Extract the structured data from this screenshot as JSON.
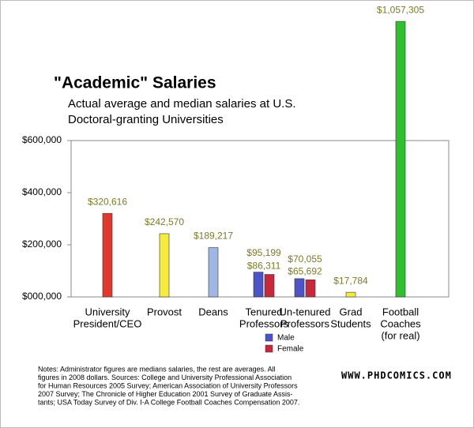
{
  "chart_data": {
    "type": "bar",
    "title": "\"Academic\" Salaries",
    "subtitle": [
      "Actual average and median salaries at U.S.",
      "Doctoral-granting Universities"
    ],
    "categories": [
      [
        "University",
        "President/CEO"
      ],
      [
        "Provost"
      ],
      [
        "Deans"
      ],
      [
        "Tenured",
        "Professors"
      ],
      [
        "Un-tenured",
        "Professors"
      ],
      [
        "Grad",
        "Students"
      ],
      [
        "Football",
        "Coaches",
        "(for real)"
      ]
    ],
    "values": [
      320616,
      242570,
      189217,
      null,
      null,
      17784,
      1057305
    ],
    "value_labels": [
      "$320,616",
      "$242,570",
      "$189,217",
      null,
      null,
      "$17,784",
      "$1,057,305"
    ],
    "colors": [
      "#e2372b",
      "#f6ec3e",
      "#9fb7e3",
      null,
      null,
      "#f6ec3e",
      "#2fbf2f"
    ],
    "series": [
      {
        "name": "Male",
        "color": "#4d53c8",
        "values": [
          null,
          null,
          null,
          95199,
          70055,
          null,
          null
        ],
        "value_labels": [
          null,
          null,
          null,
          "$95,199",
          "$70,055",
          null,
          null
        ]
      },
      {
        "name": "Female",
        "color": "#c8283c",
        "values": [
          null,
          null,
          null,
          86311,
          65692,
          null,
          null
        ],
        "value_labels": [
          null,
          null,
          null,
          "$86,311",
          "$65,692",
          null,
          null
        ]
      }
    ],
    "ylim": [
      0,
      600000
    ],
    "yticks": [
      {
        "value": 0,
        "label": "$000,000"
      },
      {
        "value": 200000,
        "label": "$200,000"
      },
      {
        "value": 400000,
        "label": "$400,000"
      },
      {
        "value": 600000,
        "label": "$600,000"
      }
    ],
    "notes": [
      "Notes: Administrator figures are medians salaries, the rest are averages. All",
      "figures in 2008 dollars. Sources: College and University Professional Association",
      "for Human Resources 2005 Survey; American Association of University Professors",
      "2007 Survey; The Chronicle of Higher Education 2001 Survey of Graduate Assis-",
      "tants; USA Today Survey of Div. I-A College Football Coaches Compensation 2007."
    ],
    "source_url": "WWW.PHDCOMICS.COM"
  }
}
